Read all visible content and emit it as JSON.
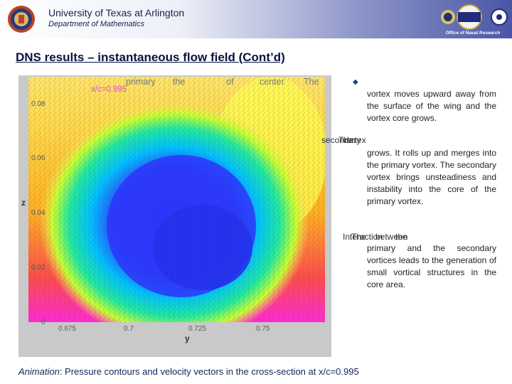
{
  "header": {
    "university": "University of Texas at Arlington",
    "department": "Department of Mathematics",
    "onr_caption": "Office of Naval Research",
    "logo_icons": [
      "uta-seal-icon",
      "navy-emblem-icon",
      "onr-logo-icon"
    ],
    "gradient_colors": [
      "#ffffff",
      "#8d96c8",
      "#4a56a6"
    ]
  },
  "slide": {
    "title_main": "DNS results – instantaneous flow field",
    "title_suffix": " (Cont’d)"
  },
  "plot": {
    "section_label": "x/c=0.995",
    "overlay_words": [
      "primary",
      "the",
      "of",
      "center",
      "The"
    ],
    "y_ticks": [
      "0.08",
      "0.06",
      "0.04",
      "0.02",
      "0"
    ],
    "x_ticks": [
      "0.675",
      "0.7",
      "0.725",
      "0.75"
    ],
    "x_label": "y",
    "y_label": "z",
    "colormap": [
      "#ff2ad4",
      "#ff4b4b",
      "#ffb020",
      "#ffff30",
      "#20e8a0",
      "#00c0ff",
      "#2030ff"
    ]
  },
  "notes": {
    "bullet_icon": "diamond-bullet-icon",
    "para1": "vortex moves upward away from the surface of the wing and the vortex core grows.",
    "para2_overlap": [
      "secondary",
      "The",
      "vortex"
    ],
    "para2": "grows. It rolls up and merges into the primary vortex. The secondary vortex brings unsteadiness and instability into the core of the primary vortex.",
    "para3_overlap": [
      "Interaction",
      "The",
      "between",
      "the"
    ],
    "para3": "primary and the secondary vortices leads to the generation of small vortical structures in the core area."
  },
  "caption": {
    "label": "Animation",
    "text": ": Pressure contours and velocity vectors in the cross-section at x/c=0.995"
  }
}
